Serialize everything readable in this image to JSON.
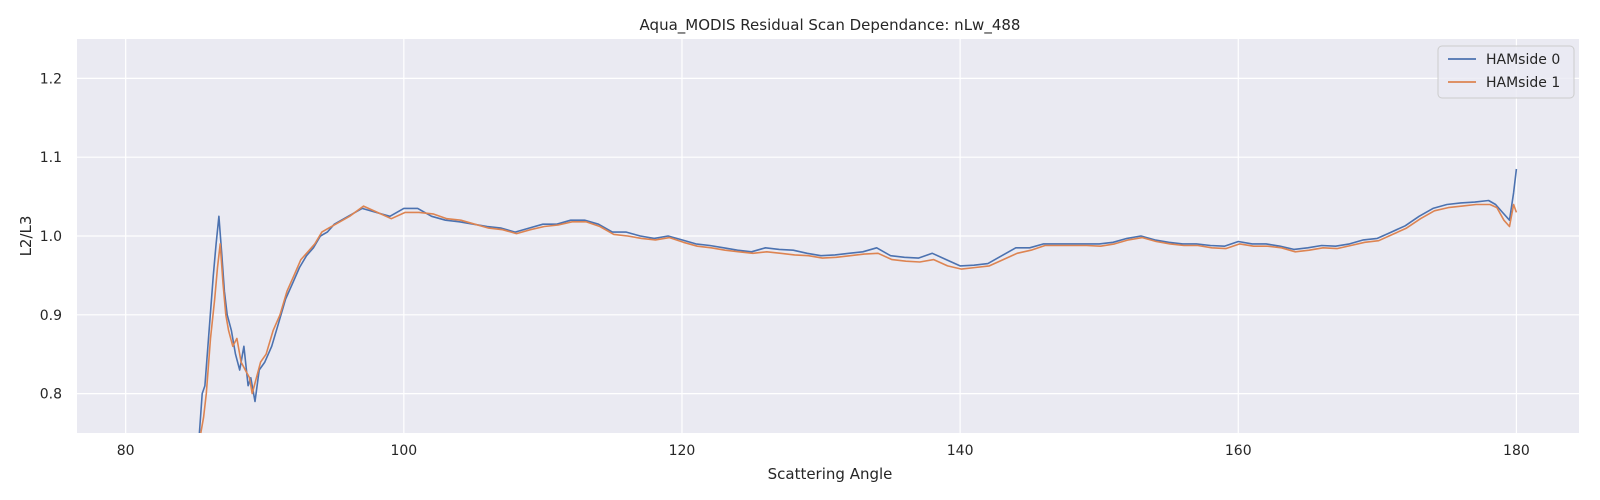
{
  "chart_data": {
    "type": "line",
    "title": "Aqua_MODIS Residual Scan Dependance: nLw_488",
    "xlabel": "Scattering Angle",
    "ylabel": "L2/L3",
    "xlim": [
      76.5,
      184.5
    ],
    "ylim": [
      0.75,
      1.25
    ],
    "xticks": [
      80,
      100,
      120,
      140,
      160,
      180
    ],
    "yticks": [
      0.8,
      0.9,
      1.0,
      1.1,
      1.2
    ],
    "ytick_labels": [
      "0.8",
      "0.9",
      "1.0",
      "1.1",
      "1.2"
    ],
    "grid": true,
    "background": "#eaeaf2",
    "legend_position": "top-right",
    "series": [
      {
        "name": "HAMside 0",
        "color": "#4c72b0",
        "x": [
          85.3,
          85.5,
          85.7,
          86.0,
          86.3,
          86.5,
          86.7,
          86.9,
          87.1,
          87.3,
          87.6,
          87.9,
          88.2,
          88.5,
          88.8,
          89.0,
          89.3,
          89.6,
          90.0,
          90.5,
          91.0,
          91.5,
          92.0,
          92.5,
          93.0,
          93.5,
          94.0,
          94.5,
          95.0,
          96.0,
          97.0,
          98.0,
          99.0,
          100.0,
          101.0,
          102.0,
          103.0,
          104.0,
          105.0,
          106.0,
          107.0,
          108.0,
          109.0,
          110.0,
          111.0,
          112.0,
          113.0,
          114.0,
          115.0,
          116.0,
          117.0,
          118.0,
          119.0,
          120.0,
          121.0,
          122.0,
          123.0,
          124.0,
          125.0,
          126.0,
          127.0,
          128.0,
          129.0,
          130.0,
          131.0,
          132.0,
          133.0,
          134.0,
          135.0,
          136.0,
          137.0,
          138.0,
          139.0,
          140.0,
          141.0,
          142.0,
          143.0,
          144.0,
          145.0,
          146.0,
          147.0,
          148.0,
          149.0,
          150.0,
          151.0,
          152.0,
          153.0,
          154.0,
          155.0,
          156.0,
          157.0,
          158.0,
          159.0,
          160.0,
          161.0,
          162.0,
          163.0,
          164.0,
          165.0,
          166.0,
          167.0,
          168.0,
          169.0,
          170.0,
          171.0,
          172.0,
          173.0,
          174.0,
          175.0,
          176.0,
          177.0,
          178.0,
          178.5,
          179.0,
          179.5,
          179.8,
          180.0
        ],
        "y": [
          0.75,
          0.8,
          0.81,
          0.88,
          0.95,
          0.99,
          1.025,
          0.98,
          0.93,
          0.9,
          0.88,
          0.85,
          0.83,
          0.86,
          0.81,
          0.82,
          0.79,
          0.83,
          0.84,
          0.86,
          0.89,
          0.92,
          0.94,
          0.96,
          0.975,
          0.985,
          1.0,
          1.005,
          1.015,
          1.025,
          1.035,
          1.03,
          1.025,
          1.035,
          1.035,
          1.025,
          1.02,
          1.018,
          1.015,
          1.012,
          1.01,
          1.005,
          1.01,
          1.015,
          1.015,
          1.02,
          1.02,
          1.015,
          1.005,
          1.005,
          1.0,
          0.997,
          1.0,
          0.995,
          0.99,
          0.988,
          0.985,
          0.982,
          0.98,
          0.985,
          0.983,
          0.982,
          0.978,
          0.975,
          0.976,
          0.978,
          0.98,
          0.985,
          0.975,
          0.973,
          0.972,
          0.978,
          0.97,
          0.962,
          0.963,
          0.965,
          0.975,
          0.985,
          0.985,
          0.99,
          0.99,
          0.99,
          0.99,
          0.99,
          0.992,
          0.997,
          1.0,
          0.995,
          0.992,
          0.99,
          0.99,
          0.988,
          0.987,
          0.993,
          0.99,
          0.99,
          0.987,
          0.983,
          0.985,
          0.988,
          0.987,
          0.99,
          0.995,
          0.997,
          1.005,
          1.013,
          1.025,
          1.035,
          1.04,
          1.042,
          1.043,
          1.045,
          1.04,
          1.03,
          1.02,
          1.055,
          1.085
        ]
      },
      {
        "name": "HAMside 1",
        "color": "#dd8452",
        "x": [
          85.4,
          85.6,
          85.8,
          86.1,
          86.4,
          86.6,
          86.8,
          87.0,
          87.2,
          87.4,
          87.7,
          88.0,
          88.3,
          88.6,
          88.9,
          89.1,
          89.4,
          89.7,
          90.1,
          90.6,
          91.1,
          91.6,
          92.1,
          92.6,
          93.1,
          93.6,
          94.1,
          94.6,
          95.1,
          96.1,
          97.1,
          98.1,
          99.1,
          100.1,
          101.1,
          102.1,
          103.1,
          104.1,
          105.1,
          106.1,
          107.1,
          108.1,
          109.1,
          110.1,
          111.1,
          112.1,
          113.1,
          114.1,
          115.1,
          116.1,
          117.1,
          118.1,
          119.1,
          120.1,
          121.1,
          122.1,
          123.1,
          124.1,
          125.1,
          126.1,
          127.1,
          128.1,
          129.1,
          130.1,
          131.1,
          132.1,
          133.1,
          134.1,
          135.1,
          136.1,
          137.1,
          138.1,
          139.1,
          140.1,
          141.1,
          142.1,
          143.1,
          144.1,
          145.1,
          146.1,
          147.1,
          148.1,
          149.1,
          150.1,
          151.1,
          152.1,
          153.1,
          154.1,
          155.1,
          156.1,
          157.1,
          158.1,
          159.1,
          160.1,
          161.1,
          162.1,
          163.1,
          164.1,
          165.1,
          166.1,
          167.1,
          168.1,
          169.1,
          170.1,
          171.1,
          172.1,
          173.1,
          174.1,
          175.1,
          176.1,
          177.1,
          178.1,
          178.6,
          179.1,
          179.5,
          179.8,
          180.0
        ],
        "y": [
          0.75,
          0.77,
          0.8,
          0.87,
          0.92,
          0.96,
          0.99,
          0.94,
          0.9,
          0.88,
          0.86,
          0.87,
          0.84,
          0.83,
          0.82,
          0.8,
          0.82,
          0.84,
          0.85,
          0.88,
          0.9,
          0.93,
          0.95,
          0.97,
          0.98,
          0.99,
          1.005,
          1.01,
          1.015,
          1.025,
          1.038,
          1.03,
          1.022,
          1.03,
          1.03,
          1.028,
          1.022,
          1.02,
          1.015,
          1.01,
          1.008,
          1.003,
          1.008,
          1.012,
          1.014,
          1.018,
          1.018,
          1.012,
          1.002,
          1.0,
          0.997,
          0.995,
          0.998,
          0.992,
          0.987,
          0.985,
          0.982,
          0.98,
          0.978,
          0.98,
          0.978,
          0.976,
          0.975,
          0.972,
          0.973,
          0.975,
          0.977,
          0.978,
          0.97,
          0.968,
          0.967,
          0.97,
          0.962,
          0.958,
          0.96,
          0.962,
          0.97,
          0.978,
          0.982,
          0.988,
          0.988,
          0.988,
          0.988,
          0.987,
          0.99,
          0.995,
          0.998,
          0.993,
          0.99,
          0.988,
          0.988,
          0.985,
          0.984,
          0.99,
          0.987,
          0.987,
          0.985,
          0.98,
          0.982,
          0.985,
          0.984,
          0.988,
          0.992,
          0.994,
          1.002,
          1.01,
          1.022,
          1.032,
          1.036,
          1.038,
          1.04,
          1.04,
          1.036,
          1.02,
          1.012,
          1.04,
          1.03
        ]
      }
    ]
  }
}
